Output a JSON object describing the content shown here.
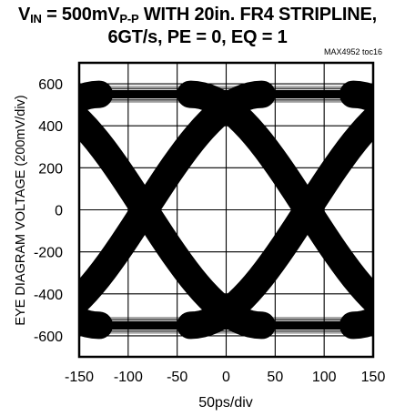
{
  "title": {
    "line1": {
      "v": "V",
      "sub": "IN",
      "mid": " = 500mV",
      "sub2": "P-P",
      "rest": " WITH 20in. FR4 STRIPLINE,"
    },
    "line2": "6GT/s, PE = 0, EQ = 1"
  },
  "chart_id": "MAX4952 toc16",
  "chart_data": {
    "type": "eye-diagram",
    "xlabel": "50ps/div",
    "ylabel": "EYE DIAGRAM VOLTAGE (200mV/div)",
    "xlim": [
      -150,
      150
    ],
    "ylim": [
      -700,
      700
    ],
    "x_ticks": [
      -150,
      -100,
      -50,
      0,
      50,
      100,
      150
    ],
    "y_ticks": [
      600,
      400,
      200,
      0,
      -200,
      -400,
      -600
    ],
    "grid": true,
    "eye": {
      "high_level": 550,
      "low_level": -550,
      "crossings_x": [
        -83,
        83
      ],
      "crossing_y": 0,
      "rail_spread": 40,
      "trace_width": 30
    }
  },
  "colors": {
    "trace": "#000000",
    "grid": "#000000",
    "background": "#ffffff"
  }
}
